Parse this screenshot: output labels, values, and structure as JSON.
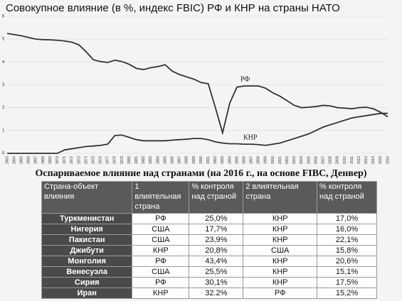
{
  "chart_data": {
    "type": "line",
    "title": "Совокупное влияние (в %, индекс FBIC) РФ и КНР на страны НАТО",
    "x": [
      1963,
      1964,
      1965,
      1966,
      1967,
      1968,
      1969,
      1970,
      1971,
      1972,
      1973,
      1974,
      1975,
      1976,
      1977,
      1978,
      1979,
      1980,
      1981,
      1982,
      1983,
      1984,
      1985,
      1986,
      1987,
      1988,
      1989,
      1990,
      1991,
      1992,
      1993,
      1994,
      1995,
      1996,
      1997,
      1998,
      1999,
      2000,
      2001,
      2002,
      2003,
      2004,
      2005,
      2006,
      2007,
      2008,
      2009,
      2010,
      2011,
      2012,
      2013,
      2014,
      2015,
      2016
    ],
    "xlim": [
      1963,
      2016
    ],
    "xticks": [
      1963,
      1964,
      1965,
      1966,
      1967,
      1968,
      1969,
      1970,
      1971,
      1972,
      1973,
      1974,
      1975,
      1976,
      1977,
      1978,
      1979,
      1980,
      1981,
      1982,
      1983,
      1984,
      1985,
      1986,
      1987,
      1988,
      1989,
      1990,
      1991,
      1992,
      1993,
      1994,
      1995,
      1996,
      1997,
      1998,
      1999,
      2000,
      2001,
      2002,
      2003,
      2004,
      2005,
      2006,
      2007,
      2008,
      2009,
      2010,
      2011,
      2012,
      2013,
      2014,
      2015,
      2016
    ],
    "ylim": [
      0,
      6
    ],
    "yticks": [
      0,
      1,
      2,
      3,
      4,
      5,
      6
    ],
    "grid": true,
    "series": [
      {
        "name": "РФ",
        "color": "#333333",
        "values": [
          5.25,
          5.2,
          5.15,
          5.07,
          5.0,
          4.98,
          4.97,
          4.95,
          4.92,
          4.87,
          4.75,
          4.45,
          4.1,
          4.02,
          3.98,
          4.08,
          4.02,
          3.9,
          3.72,
          3.67,
          3.75,
          3.8,
          3.88,
          3.6,
          3.45,
          3.35,
          3.25,
          3.1,
          3.05,
          2.0,
          0.9,
          2.2,
          2.9,
          2.95,
          2.95,
          2.95,
          2.85,
          2.65,
          2.5,
          2.3,
          2.1,
          2.0,
          2.02,
          2.05,
          2.1,
          2.08,
          2.0,
          1.98,
          1.95,
          2.0,
          2.02,
          1.95,
          1.8,
          1.6
        ]
      },
      {
        "name": "КНР",
        "color": "#333333",
        "values": [
          0,
          0,
          0,
          0,
          0,
          0,
          0,
          0,
          0.15,
          0.2,
          0.25,
          0.3,
          0.32,
          0.35,
          0.4,
          0.78,
          0.8,
          0.7,
          0.6,
          0.55,
          0.55,
          0.55,
          0.55,
          0.58,
          0.6,
          0.62,
          0.65,
          0.65,
          0.6,
          0.5,
          0.45,
          0.42,
          0.42,
          0.4,
          0.4,
          0.38,
          0.35,
          0.4,
          0.45,
          0.55,
          0.65,
          0.75,
          0.85,
          1.0,
          1.15,
          1.25,
          1.35,
          1.45,
          1.55,
          1.6,
          1.65,
          1.7,
          1.75,
          1.75
        ]
      }
    ]
  },
  "table": {
    "title": "Оспариваемое влияние над странами (на 2016 г., на основе FIBC, Денвер)",
    "header": [
      "Страна-объект влияния",
      "1 влиятельная страна",
      "% контроля над страной",
      "2 влиятельная страна",
      "% контроля над страной"
    ],
    "rows": [
      [
        "Туркменистан",
        "РФ",
        "25,0%",
        "КНР",
        "17,0%"
      ],
      [
        "Нигерия",
        "США",
        "17,7%",
        "КНР",
        "16,0%"
      ],
      [
        "Пакистан",
        "США",
        "23,9%",
        "КНР",
        "22,1%"
      ],
      [
        "Джибути",
        "КНР",
        "20,8%",
        "США",
        "15,8%"
      ],
      [
        "Монголия",
        "РФ",
        "43,4%",
        "КНР",
        "20,6%"
      ],
      [
        "Венесуэла",
        "США",
        "25,5%",
        "КНР",
        "15,1%"
      ],
      [
        "Сирия",
        "РФ",
        "30,1%",
        "КНР",
        "17,5%"
      ],
      [
        "Иран",
        "КНР",
        "32.2%",
        "РФ",
        "15,2%"
      ]
    ]
  }
}
